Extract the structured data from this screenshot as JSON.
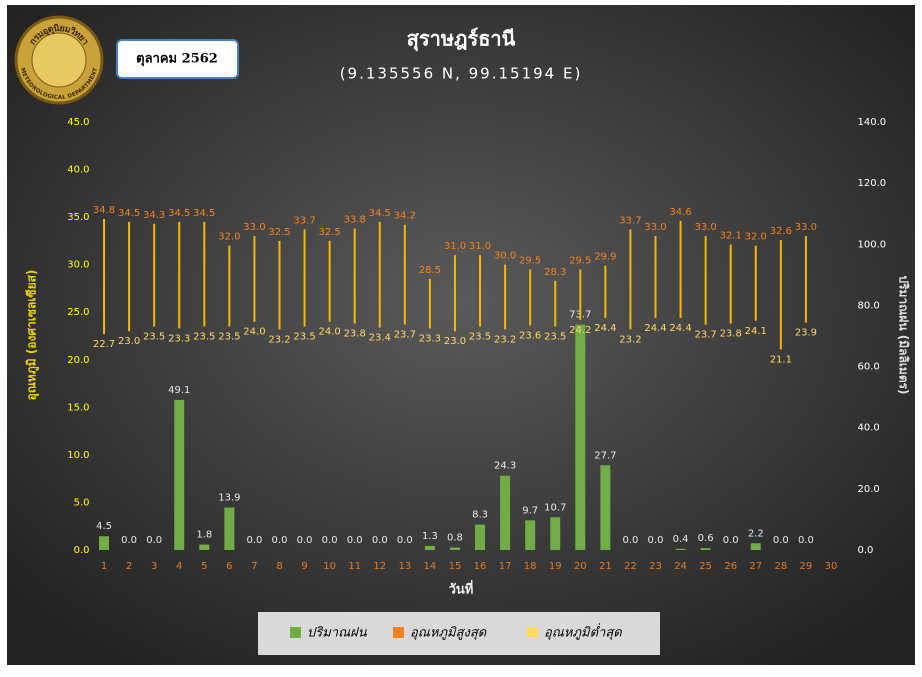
{
  "logo": {
    "top": "กรมอุตุนิยมวิทยา",
    "bottom": "METEOROLOGICAL DEPARTMENT"
  },
  "badge": "ตุลาคม 2562",
  "chart_data": {
    "type": "bar",
    "title": "สุราษฎร์ธานี",
    "subtitle": "(9.135556 N, 99.15194 E)",
    "x_label": "วันที่",
    "y_label": "อุณหภูมิ (องศาเซลเซียส)",
    "y2_label": "ปริมาณฝน (มิลลิเมตร)",
    "categories": [
      "1",
      "2",
      "3",
      "4",
      "5",
      "6",
      "7",
      "8",
      "9",
      "10",
      "11",
      "12",
      "13",
      "14",
      "15",
      "16",
      "17",
      "18",
      "19",
      "20",
      "21",
      "22",
      "23",
      "24",
      "25",
      "26",
      "27",
      "28",
      "29",
      "30"
    ],
    "ylim": [
      0,
      45
    ],
    "yticks": [
      {
        "value": 0,
        "label": "0.0"
      },
      {
        "value": 5,
        "label": "5.0"
      },
      {
        "value": 10,
        "label": "10.0"
      },
      {
        "value": 15,
        "label": "15.0"
      },
      {
        "value": 20,
        "label": "20.0"
      },
      {
        "value": 25,
        "label": "25.0"
      },
      {
        "value": 30,
        "label": "30.0"
      },
      {
        "value": 35,
        "label": "35.0"
      },
      {
        "value": 40,
        "label": "40.0"
      },
      {
        "value": 45,
        "label": "45.0"
      }
    ],
    "y2lim": [
      0,
      140
    ],
    "y2ticks": [
      {
        "value": 0,
        "label": "0.0"
      },
      {
        "value": 20,
        "label": "20.0"
      },
      {
        "value": 40,
        "label": "40.0"
      },
      {
        "value": 60,
        "label": "60.0"
      },
      {
        "value": 80,
        "label": "80.0"
      },
      {
        "value": 100,
        "label": "100.0"
      },
      {
        "value": 120,
        "label": "120.0"
      },
      {
        "value": 140,
        "label": "140.0"
      }
    ],
    "legend": "bottom",
    "series": [
      {
        "name": "ปริมาณฝน",
        "color": "#70ad47",
        "type": "bar",
        "axis": "y2",
        "values": [
          4.5,
          0,
          0,
          49.1,
          1.8,
          13.9,
          0,
          0,
          0,
          0,
          0,
          0,
          0,
          1.3,
          0.8,
          8.3,
          24.3,
          9.7,
          10.7,
          73.7,
          27.7,
          0,
          0,
          0.4,
          0.6,
          0,
          2.2,
          0,
          0,
          null
        ],
        "value_labels": [
          "4.5",
          "0.0",
          "0.0",
          "49.1",
          "1.8",
          "13.9",
          "0.0",
          "0.0",
          "0.0",
          "0.0",
          "0.0",
          "0.0",
          "0.0",
          "1.3",
          "0.8",
          "8.3",
          "24.3",
          "9.7",
          "10.7",
          "73.7",
          "27.7",
          "0.0",
          "0.0",
          "0.4",
          "0.6",
          "0.0",
          "2.2",
          "0.0",
          "0.0",
          null
        ]
      },
      {
        "name": "อุณหภูมิสูงสุด",
        "color": "#f5821f",
        "type": "high",
        "axis": "y",
        "values": [
          34.8,
          34.5,
          34.3,
          34.5,
          34.5,
          32.0,
          33.0,
          32.5,
          33.7,
          32.5,
          33.8,
          34.5,
          34.2,
          28.5,
          31.0,
          31.0,
          30.0,
          29.5,
          28.3,
          29.5,
          29.9,
          33.7,
          33.0,
          34.6,
          33.0,
          32.1,
          32.0,
          32.6,
          33.0,
          null
        ],
        "value_labels": [
          "34.8",
          "34.5",
          "34.3",
          "34.5",
          "34.5",
          "32.0",
          "33.0",
          "32.5",
          "33.7",
          "32.5",
          "33.8",
          "34.5",
          "34.2",
          "28.5",
          "31.0",
          "31.0",
          "30.0",
          "29.5",
          "28.3",
          "29.5",
          "29.9",
          "33.7",
          "33.0",
          "34.6",
          "33.0",
          "32.1",
          "32.0",
          "32.6",
          "33.0",
          null
        ]
      },
      {
        "name": "อุณหภูมิต่ำสุด",
        "color": "#ffd966",
        "type": "low",
        "axis": "y",
        "values": [
          22.7,
          23.0,
          23.5,
          23.3,
          23.5,
          23.5,
          24.0,
          23.2,
          23.5,
          24.0,
          23.8,
          23.4,
          23.7,
          23.3,
          23.0,
          23.5,
          23.2,
          23.6,
          23.5,
          24.2,
          24.4,
          23.2,
          24.4,
          24.4,
          23.7,
          23.8,
          24.1,
          21.1,
          23.9,
          null
        ],
        "value_labels": [
          "22.7",
          "23.0",
          "23.5",
          "23.3",
          "23.5",
          "23.5",
          "24.0",
          "23.2",
          "23.5",
          "24.0",
          "23.8",
          "23.4",
          "23.7",
          "23.3",
          "23.0",
          "23.5",
          "23.2",
          "23.6",
          "23.5",
          "24.2",
          "24.4",
          "23.2",
          "24.4",
          "24.4",
          "23.7",
          "23.8",
          "24.1",
          "21.1",
          "23.9",
          null
        ]
      }
    ]
  }
}
